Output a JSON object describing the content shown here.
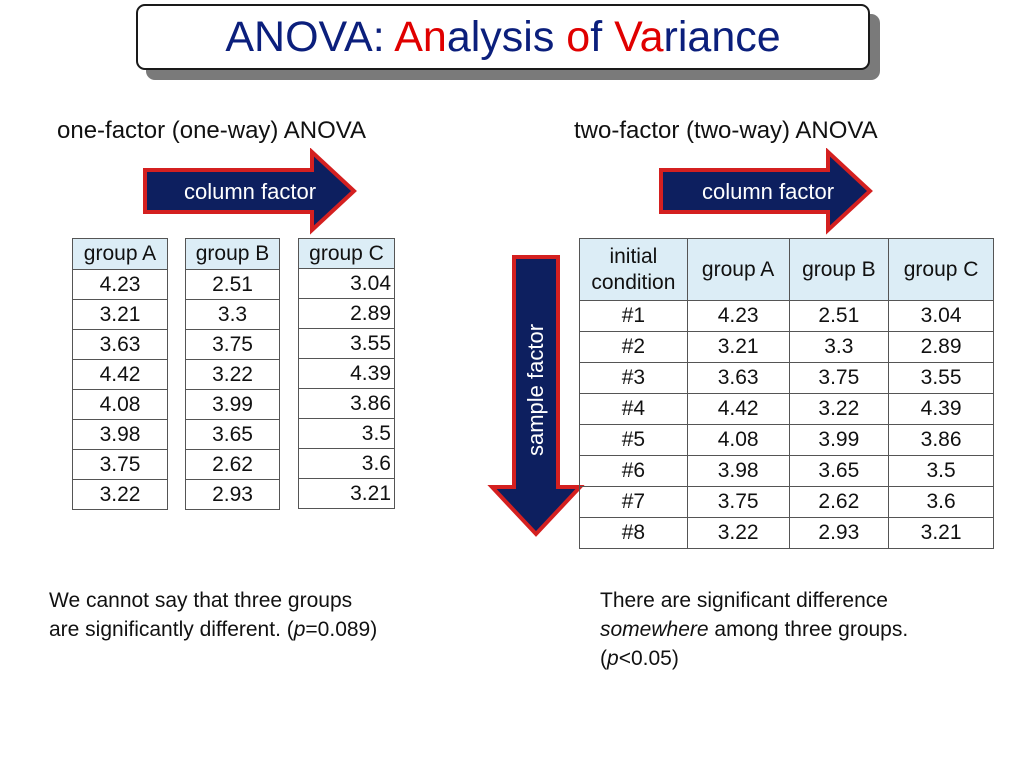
{
  "title": {
    "parts": [
      {
        "text": "ANOVA: ",
        "highlight": false
      },
      {
        "text": "An",
        "highlight": true
      },
      {
        "text": "alysis ",
        "highlight": false
      },
      {
        "text": "o",
        "highlight": true
      },
      {
        "text": "f ",
        "highlight": false
      },
      {
        "text": "Va",
        "highlight": true
      },
      {
        "text": "riance",
        "highlight": false
      }
    ],
    "color": "#0b1f7c",
    "highlight_color": "#e00000"
  },
  "one_way": {
    "heading": "one-factor (one-way) ANOVA",
    "arrow_label": "column factor",
    "groups": [
      {
        "name": "group A",
        "values": [
          "4.23",
          "3.21",
          "3.63",
          "4.42",
          "4.08",
          "3.98",
          "3.75",
          "3.22"
        ]
      },
      {
        "name": "group B",
        "values": [
          "2.51",
          "3.3",
          "3.75",
          "3.22",
          "3.99",
          "3.65",
          "2.62",
          "2.93"
        ]
      },
      {
        "name": "group C",
        "values": [
          "3.04",
          "2.89",
          "3.55",
          "4.39",
          "3.86",
          "3.5",
          "3.6",
          "3.21"
        ]
      }
    ],
    "note_line1": "We cannot say that three groups",
    "note_line2_pre": "are significantly different. (",
    "note_p": "p",
    "note_line2_post": "=0.089)"
  },
  "two_way": {
    "heading": "two-factor (two-way) ANOVA",
    "arrow_label": "column factor",
    "side_arrow_label": "sample factor",
    "header_first_line1": "initial",
    "header_first_line2": "condition",
    "headers": [
      "group A",
      "group B",
      "group C"
    ],
    "rows": [
      {
        "cond": "#1",
        "a": "4.23",
        "b": "2.51",
        "c": "3.04"
      },
      {
        "cond": "#2",
        "a": "3.21",
        "b": "3.3",
        "c": "2.89"
      },
      {
        "cond": "#3",
        "a": "3.63",
        "b": "3.75",
        "c": "3.55"
      },
      {
        "cond": "#4",
        "a": "4.42",
        "b": "3.22",
        "c": "4.39"
      },
      {
        "cond": "#5",
        "a": "4.08",
        "b": "3.99",
        "c": "3.86"
      },
      {
        "cond": "#6",
        "a": "3.98",
        "b": "3.65",
        "c": "3.5"
      },
      {
        "cond": "#7",
        "a": "3.75",
        "b": "2.62",
        "c": "3.6"
      },
      {
        "cond": "#8",
        "a": "3.22",
        "b": "2.93",
        "c": "3.21"
      }
    ],
    "note_line1": "There are significant difference",
    "note_line2_em": "somewhere",
    "note_line2_post": " among three groups.",
    "note_line3_pre": "(",
    "note_p": "p",
    "note_line3_post": "<0.05)"
  },
  "colors": {
    "arrow_fill": "#0d1f5f",
    "arrow_border": "#d42020",
    "header_fill": "#dcedf6"
  }
}
